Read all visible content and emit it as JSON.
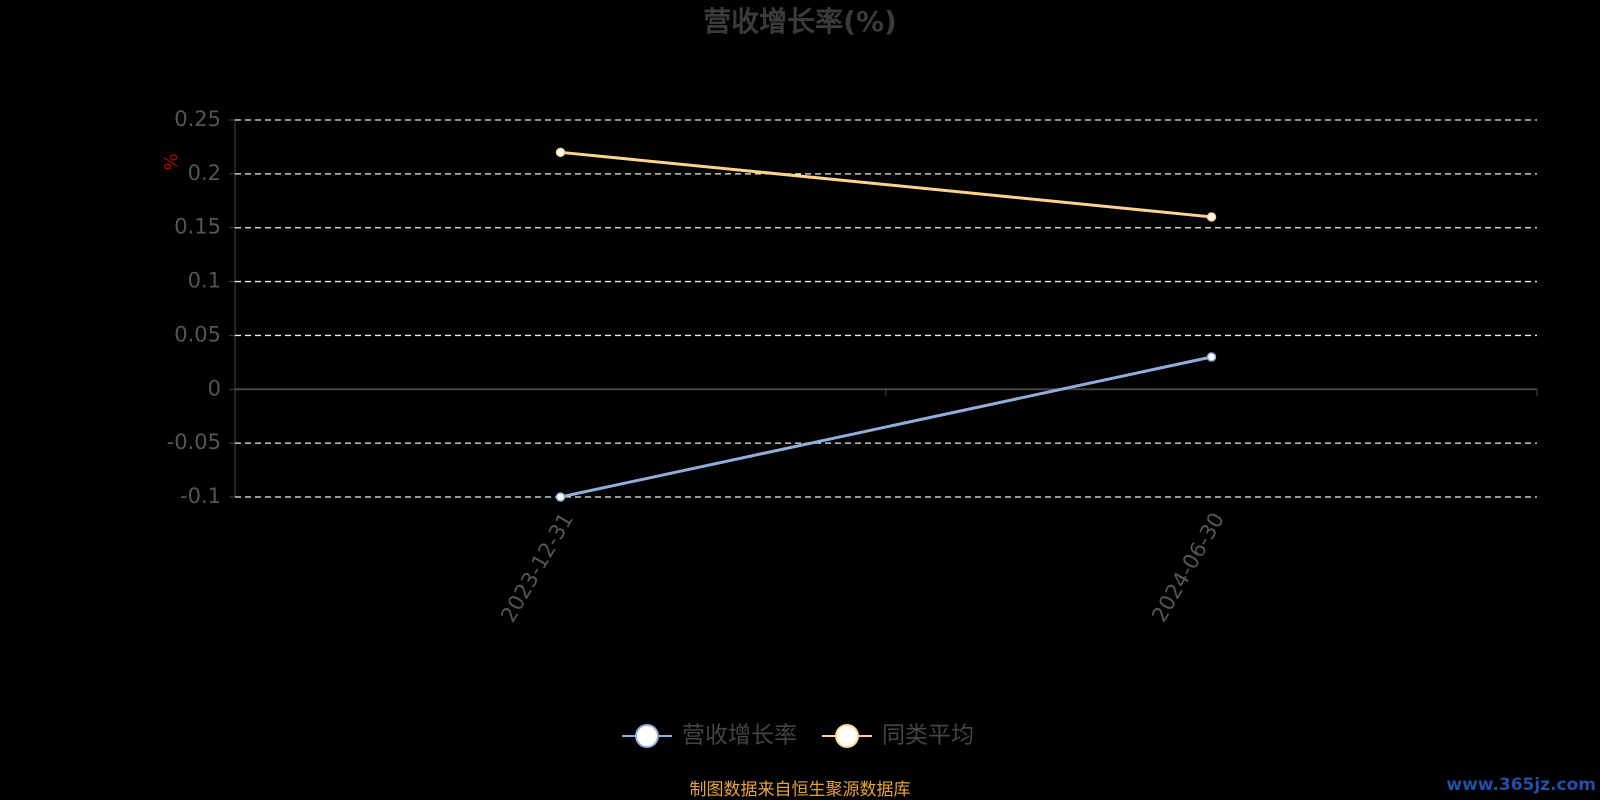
{
  "chart_data": {
    "type": "line",
    "title": "营收增长率(%)",
    "y_label": "%",
    "categories": [
      "2023-12-31",
      "2024-06-30"
    ],
    "series": [
      {
        "name": "营收增长率",
        "color": "#92acdc",
        "values": [
          -0.1,
          0.03
        ]
      },
      {
        "name": "同类平均",
        "color": "#fcd48c",
        "values": [
          0.22,
          0.16
        ]
      }
    ],
    "ylim": [
      -0.1,
      0.25
    ],
    "yticks": [
      -0.1,
      -0.05,
      0,
      0.05,
      0.1,
      0.15,
      0.2,
      0.25
    ],
    "grid": true,
    "legend": "bottom",
    "source": "制图数据来自恒生聚源数据库",
    "watermark": "www.365jz.com"
  }
}
